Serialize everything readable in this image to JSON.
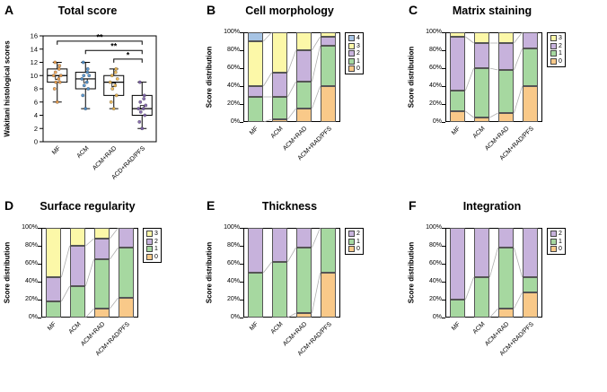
{
  "figure": {
    "background": "#ffffff"
  },
  "palette": {
    "score0_orange": "#F9C989",
    "score1_green": "#A6D8A0",
    "score2_purple": "#C7B2DC",
    "score3_yellow": "#FCF8A8",
    "score4_blue": "#A7C4E4",
    "axis": "#000000",
    "connector": "#b0b0b0"
  },
  "chart_data": [
    {
      "id": "A",
      "type": "box",
      "title": "Total score",
      "ylabel": "Wakitani histological scores",
      "ylim": [
        0,
        16
      ],
      "yticks": [
        0,
        2,
        4,
        6,
        8,
        10,
        12,
        14,
        16
      ],
      "categories": [
        "MF",
        "ACM",
        "ACM+RAD",
        "ACD+RAD/PFS"
      ],
      "boxes": [
        {
          "lo": 6,
          "q1": 9,
          "median": 10,
          "mean": 9.7,
          "q3": 11,
          "hi": 12,
          "color": "#F0A04B",
          "points": [
            6,
            8,
            9,
            9,
            9.5,
            10,
            10,
            10.5,
            11,
            11.5,
            12
          ]
        },
        {
          "lo": 5,
          "q1": 8,
          "median": 9.5,
          "mean": 9.2,
          "q3": 10.5,
          "hi": 12,
          "color": "#4D8FCC",
          "points": [
            5,
            7,
            8,
            8.5,
            9,
            9.5,
            10,
            10,
            10.5,
            11,
            12
          ]
        },
        {
          "lo": 5,
          "q1": 7,
          "median": 9,
          "mean": 8.6,
          "q3": 10,
          "hi": 11,
          "color": "#EDB64E",
          "points": [
            5,
            6,
            7,
            8,
            8.5,
            9,
            9.5,
            10,
            10.5,
            11
          ]
        },
        {
          "lo": 2,
          "q1": 4,
          "median": 5,
          "mean": 5.2,
          "q3": 7,
          "hi": 9,
          "color": "#7C5FA8",
          "points": [
            2,
            3,
            4,
            4.5,
            5,
            5,
            5.5,
            6,
            6.5,
            7,
            9
          ]
        }
      ],
      "brackets": [
        {
          "from": 0,
          "to": 3,
          "y": 15.2,
          "label": "**"
        },
        {
          "from": 1,
          "to": 3,
          "y": 13.8,
          "label": "**"
        },
        {
          "from": 2,
          "to": 3,
          "y": 12.5,
          "label": "*"
        }
      ]
    },
    {
      "id": "B",
      "type": "stacked",
      "title": "Cell morphology",
      "ylabel": "Score distribution",
      "yticks_pct": [
        "0%",
        "20%",
        "40%",
        "60%",
        "80%",
        "100%"
      ],
      "categories": [
        "MF",
        "ACM",
        "ACM+RAD",
        "ACM+RAD/PFS"
      ],
      "series": [
        {
          "score": "0",
          "color": "#F9C989",
          "values": [
            0,
            3,
            15,
            40
          ]
        },
        {
          "score": "1",
          "color": "#A6D8A0",
          "values": [
            28,
            25,
            30,
            45
          ]
        },
        {
          "score": "2",
          "color": "#C7B2DC",
          "values": [
            12,
            27,
            35,
            10
          ]
        },
        {
          "score": "3",
          "color": "#FCF8A8",
          "values": [
            50,
            45,
            20,
            5
          ]
        },
        {
          "score": "4",
          "color": "#A7C4E4",
          "values": [
            10,
            0,
            0,
            0
          ]
        }
      ]
    },
    {
      "id": "C",
      "type": "stacked",
      "title": "Matrix staining",
      "ylabel": "Score distribution",
      "yticks_pct": [
        "0%",
        "20%",
        "40%",
        "60%",
        "80%",
        "100%"
      ],
      "categories": [
        "MF",
        "ACM",
        "ACM+RAD",
        "ACM+RAD/PFS"
      ],
      "series": [
        {
          "score": "0",
          "color": "#F9C989",
          "values": [
            12,
            5,
            10,
            40
          ]
        },
        {
          "score": "1",
          "color": "#A6D8A0",
          "values": [
            23,
            55,
            48,
            42
          ]
        },
        {
          "score": "2",
          "color": "#C7B2DC",
          "values": [
            60,
            28,
            30,
            18
          ]
        },
        {
          "score": "3",
          "color": "#FCF8A8",
          "values": [
            5,
            12,
            12,
            0
          ]
        }
      ]
    },
    {
      "id": "D",
      "type": "stacked",
      "title": "Surface regularity",
      "ylabel": "Score distribution",
      "yticks_pct": [
        "0%",
        "20%",
        "40%",
        "60%",
        "80%",
        "100%"
      ],
      "categories": [
        "MF",
        "ACM",
        "ACM+RAD",
        "ACM+RAD/PFS"
      ],
      "series": [
        {
          "score": "0",
          "color": "#F9C989",
          "values": [
            0,
            0,
            10,
            22
          ]
        },
        {
          "score": "1",
          "color": "#A6D8A0",
          "values": [
            18,
            35,
            55,
            56
          ]
        },
        {
          "score": "2",
          "color": "#C7B2DC",
          "values": [
            27,
            45,
            23,
            22
          ]
        },
        {
          "score": "3",
          "color": "#FCF8A8",
          "values": [
            55,
            20,
            12,
            0
          ]
        }
      ]
    },
    {
      "id": "E",
      "type": "stacked",
      "title": "Thickness",
      "ylabel": "Score distribution",
      "yticks_pct": [
        "0%",
        "20%",
        "40%",
        "60%",
        "80%",
        "100%"
      ],
      "categories": [
        "MF",
        "ACM",
        "ACM+RAD",
        "ACM+RAD/PFS"
      ],
      "series": [
        {
          "score": "0",
          "color": "#F9C989",
          "values": [
            0,
            0,
            5,
            50
          ]
        },
        {
          "score": "1",
          "color": "#A6D8A0",
          "values": [
            50,
            62,
            73,
            50
          ]
        },
        {
          "score": "2",
          "color": "#C7B2DC",
          "values": [
            50,
            38,
            22,
            0
          ]
        }
      ]
    },
    {
      "id": "F",
      "type": "stacked",
      "title": "Integration",
      "ylabel": "Score distribution",
      "yticks_pct": [
        "0%",
        "20%",
        "40%",
        "60%",
        "80%",
        "100%"
      ],
      "categories": [
        "MF",
        "ACM",
        "ACM+RAD",
        "ACM+RAD/PFS"
      ],
      "series": [
        {
          "score": "0",
          "color": "#F9C989",
          "values": [
            0,
            0,
            10,
            28
          ]
        },
        {
          "score": "1",
          "color": "#A6D8A0",
          "values": [
            20,
            45,
            68,
            17
          ]
        },
        {
          "score": "2",
          "color": "#C7B2DC",
          "values": [
            80,
            55,
            22,
            55
          ]
        }
      ]
    }
  ]
}
